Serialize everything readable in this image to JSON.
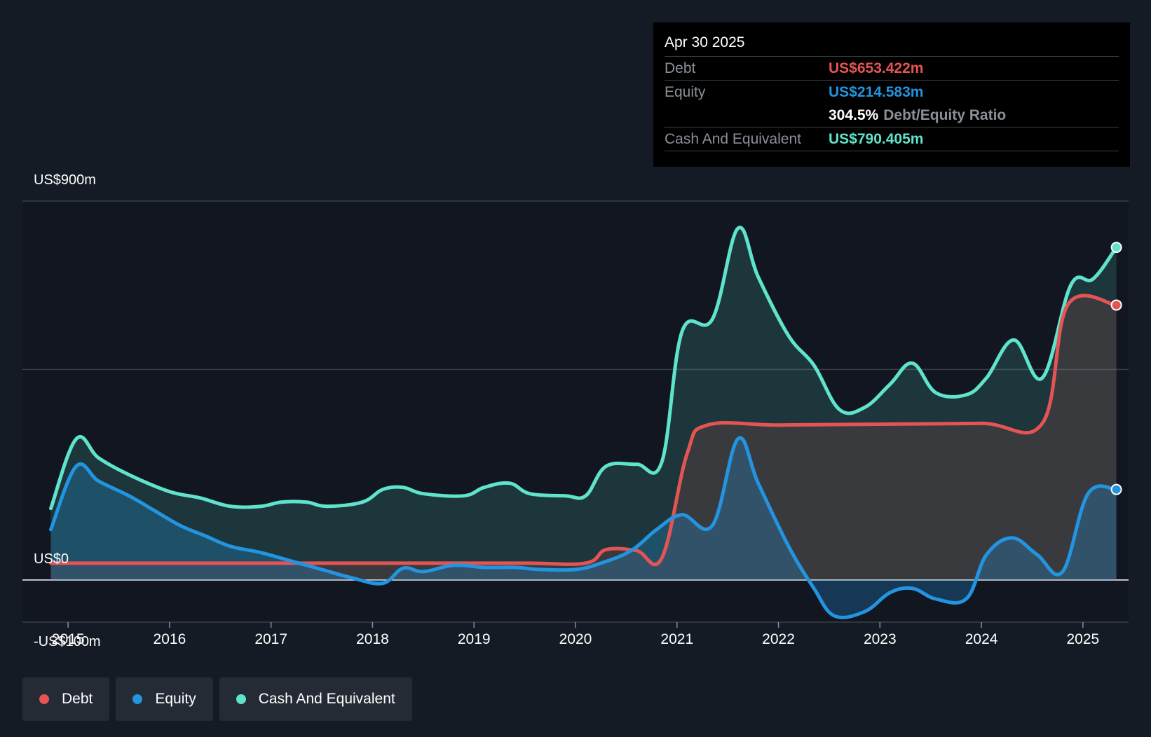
{
  "chart_data": {
    "type": "area",
    "y_labels": [
      "US$900m",
      "US$0",
      "-US$100m"
    ],
    "ylim": [
      -100,
      900
    ],
    "x_ticks": [
      "2015",
      "2016",
      "2017",
      "2018",
      "2019",
      "2020",
      "2021",
      "2022",
      "2023",
      "2024",
      "2025"
    ],
    "x_tick_values": [
      2015,
      2016,
      2017,
      2018,
      2019,
      2020,
      2021,
      2022,
      2023,
      2024,
      2025
    ],
    "xlim": [
      2014.55,
      2025.45
    ],
    "grid": true,
    "legend_position": "bottom-left",
    "series": [
      {
        "name": "Cash And Equivalent",
        "color": "#5fe3cc",
        "x": [
          2014.83,
          2015.08,
          2015.3,
          2015.6,
          2016.0,
          2016.3,
          2016.6,
          2016.9,
          2017.1,
          2017.35,
          2017.55,
          2017.9,
          2018.1,
          2018.3,
          2018.5,
          2018.9,
          2019.1,
          2019.35,
          2019.55,
          2019.9,
          2020.1,
          2020.3,
          2020.6,
          2020.85,
          2021.05,
          2021.35,
          2021.6,
          2021.8,
          2022.1,
          2022.35,
          2022.6,
          2022.85,
          2023.1,
          2023.32,
          2023.55,
          2023.85,
          2024.05,
          2024.32,
          2024.6,
          2024.88,
          2025.1,
          2025.33
        ],
        "values": [
          170,
          335,
          290,
          250,
          210,
          195,
          175,
          175,
          185,
          185,
          175,
          185,
          215,
          220,
          205,
          200,
          220,
          230,
          205,
          200,
          200,
          270,
          275,
          280,
          590,
          620,
          835,
          720,
          580,
          510,
          405,
          410,
          465,
          515,
          445,
          440,
          480,
          570,
          480,
          700,
          715,
          790
        ]
      },
      {
        "name": "Debt",
        "color": "#e55454",
        "x": [
          2014.83,
          2015.5,
          2016.5,
          2017.5,
          2018.5,
          2019.5,
          2020.1,
          2020.3,
          2020.6,
          2020.85,
          2021.1,
          2021.3,
          2022.0,
          2023.0,
          2024.0,
          2024.6,
          2024.85,
          2025.33
        ],
        "values": [
          40,
          40,
          40,
          40,
          40,
          40,
          40,
          72,
          70,
          52,
          300,
          368,
          368,
          370,
          372,
          372,
          653,
          653
        ]
      },
      {
        "name": "Equity",
        "color": "#2394df",
        "x": [
          2014.83,
          2015.08,
          2015.3,
          2015.6,
          2015.85,
          2016.1,
          2016.35,
          2016.6,
          2016.9,
          2017.2,
          2017.5,
          2017.8,
          2018.1,
          2018.3,
          2018.5,
          2018.8,
          2019.1,
          2019.4,
          2019.65,
          2020.0,
          2020.25,
          2020.55,
          2020.8,
          2021.05,
          2021.35,
          2021.6,
          2021.8,
          2022.1,
          2022.35,
          2022.55,
          2022.85,
          2023.1,
          2023.32,
          2023.55,
          2023.85,
          2024.05,
          2024.3,
          2024.55,
          2024.8,
          2025.05,
          2025.33
        ],
        "values": [
          120,
          270,
          235,
          200,
          165,
          130,
          105,
          80,
          65,
          45,
          25,
          5,
          -8,
          28,
          20,
          35,
          30,
          30,
          25,
          25,
          40,
          70,
          120,
          155,
          130,
          335,
          230,
          80,
          -20,
          -85,
          -75,
          -30,
          -20,
          -45,
          -45,
          60,
          100,
          60,
          20,
          205,
          215
        ]
      }
    ]
  },
  "tooltip": {
    "date": "Apr 30 2025",
    "debt_label": "Debt",
    "debt_value": "US$653.422m",
    "equity_label": "Equity",
    "equity_value": "US$214.583m",
    "ratio_value": "304.5%",
    "ratio_label": "Debt/Equity Ratio",
    "cash_label": "Cash And Equivalent",
    "cash_value": "US$790.405m"
  },
  "legend": {
    "debt": "Debt",
    "equity": "Equity",
    "cash": "Cash And Equivalent"
  },
  "colors": {
    "debt": "#e55454",
    "equity": "#2394df",
    "cash": "#5fe3cc",
    "background": "#151b24"
  }
}
